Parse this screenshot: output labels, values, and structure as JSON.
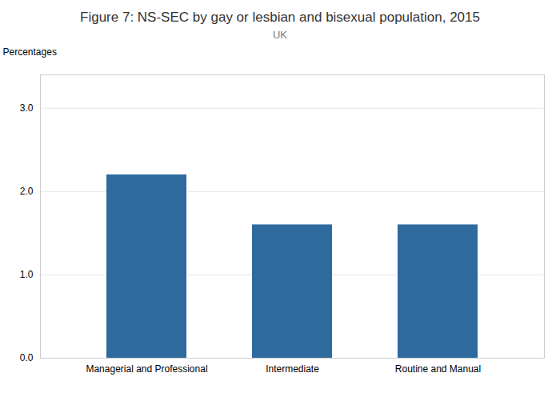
{
  "chart_data": {
    "type": "bar",
    "title": "Figure 7: NS-SEC by gay or lesbian and bisexual population, 2015",
    "subtitle": "UK",
    "categories": [
      "Managerial and Professional",
      "Intermediate",
      "Routine and Manual"
    ],
    "values": [
      2.2,
      1.6,
      1.6
    ],
    "color": "#2e6a9e",
    "ylabel": "Percentages",
    "ylim": [
      0,
      3.4
    ],
    "yticks": [
      0,
      1,
      2,
      3
    ],
    "grid": true
  }
}
